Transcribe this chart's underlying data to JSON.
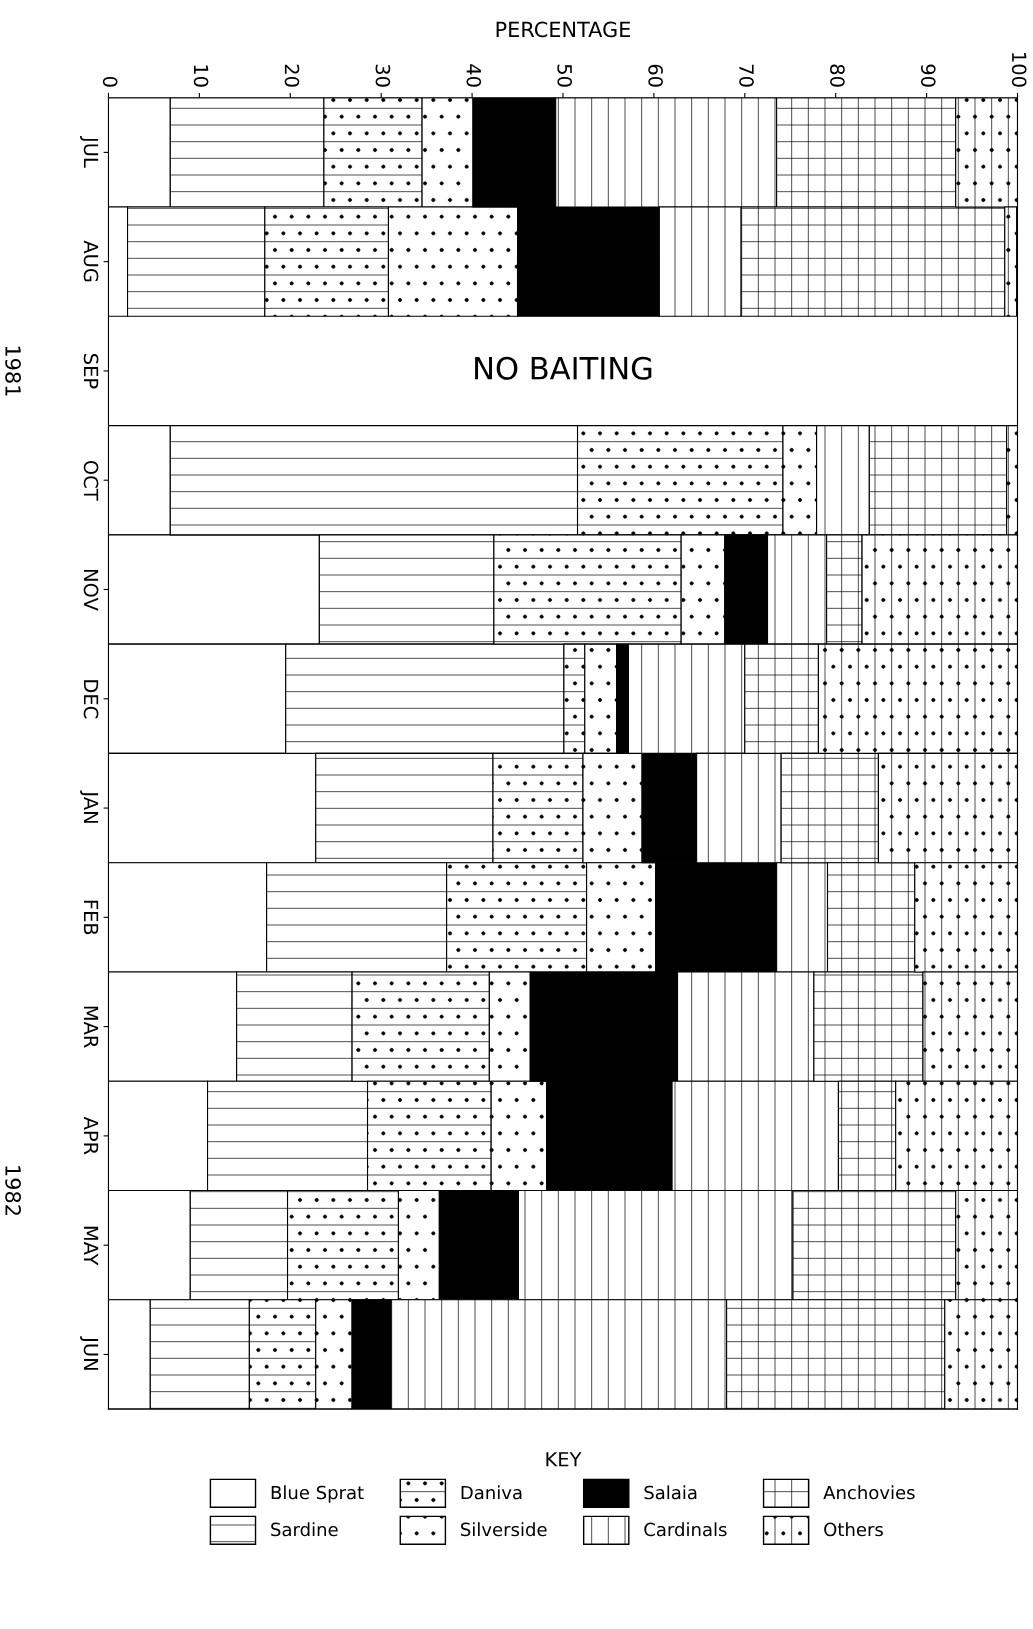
{
  "chart_data": {
    "type": "bar",
    "orientation": "horizontal",
    "stacked": true,
    "xlabel": "PERCENTAGE",
    "legend_title": "KEY",
    "legend": "bottom",
    "grid": false,
    "categories": [
      "JUL",
      "AUG",
      "SEP",
      "OCT",
      "NOV",
      "DEC",
      "JAN",
      "FEB",
      "MAR",
      "APR",
      "MAY",
      "JUN"
    ],
    "xlim": [
      0,
      100
    ],
    "xticks": [
      0,
      10,
      20,
      30,
      40,
      50,
      60,
      70,
      80,
      90,
      100
    ],
    "annotations": [
      "NO BAITING",
      "1981",
      "1982"
    ],
    "series": [
      {
        "name": "Blue Sprat",
        "color": "#ffffff",
        "values": [
          6.8,
          2.1,
          null,
          6.8,
          23.2,
          19.5,
          22.8,
          17.4,
          14.1,
          10.9,
          9.0,
          4.6
        ]
      },
      {
        "name": "Sardine",
        "color": "#ffffff",
        "values": [
          16.9,
          15.1,
          null,
          44.8,
          19.2,
          30.6,
          19.5,
          19.8,
          12.7,
          17.6,
          10.7,
          10.9
        ]
      },
      {
        "name": "Daniva",
        "color": "#ffffff",
        "values": [
          10.8,
          13.6,
          null,
          22.6,
          20.6,
          2.3,
          9.9,
          15.4,
          15.1,
          13.6,
          12.2,
          7.3
        ]
      },
      {
        "name": "Silverside",
        "color": "#ffffff",
        "values": [
          5.6,
          14.2,
          null,
          3.7,
          4.8,
          3.5,
          6.5,
          7.6,
          4.5,
          6.1,
          4.5,
          4.0
        ]
      },
      {
        "name": "Salaia",
        "color": "#000000",
        "values": [
          9.1,
          15.6,
          null,
          0,
          4.7,
          1.3,
          6.0,
          13.3,
          16.2,
          13.8,
          8.7,
          4.3
        ]
      },
      {
        "name": "Cardinals",
        "color": "#ffffff",
        "values": [
          24.3,
          9.0,
          null,
          5.8,
          6.5,
          12.8,
          9.3,
          5.6,
          15.0,
          18.3,
          30.2,
          36.9
        ]
      },
      {
        "name": "Anchovies",
        "color": "#ffffff",
        "values": [
          19.7,
          29.0,
          null,
          15.1,
          3.9,
          8.1,
          10.7,
          9.6,
          12.0,
          6.3,
          17.9,
          24.0
        ]
      },
      {
        "name": "Others",
        "color": "#ffffff",
        "values": [
          6.8,
          1.3,
          null,
          1.3,
          17.1,
          21.9,
          15.3,
          11.3,
          10.4,
          13.4,
          6.8,
          8.0
        ]
      }
    ]
  }
}
